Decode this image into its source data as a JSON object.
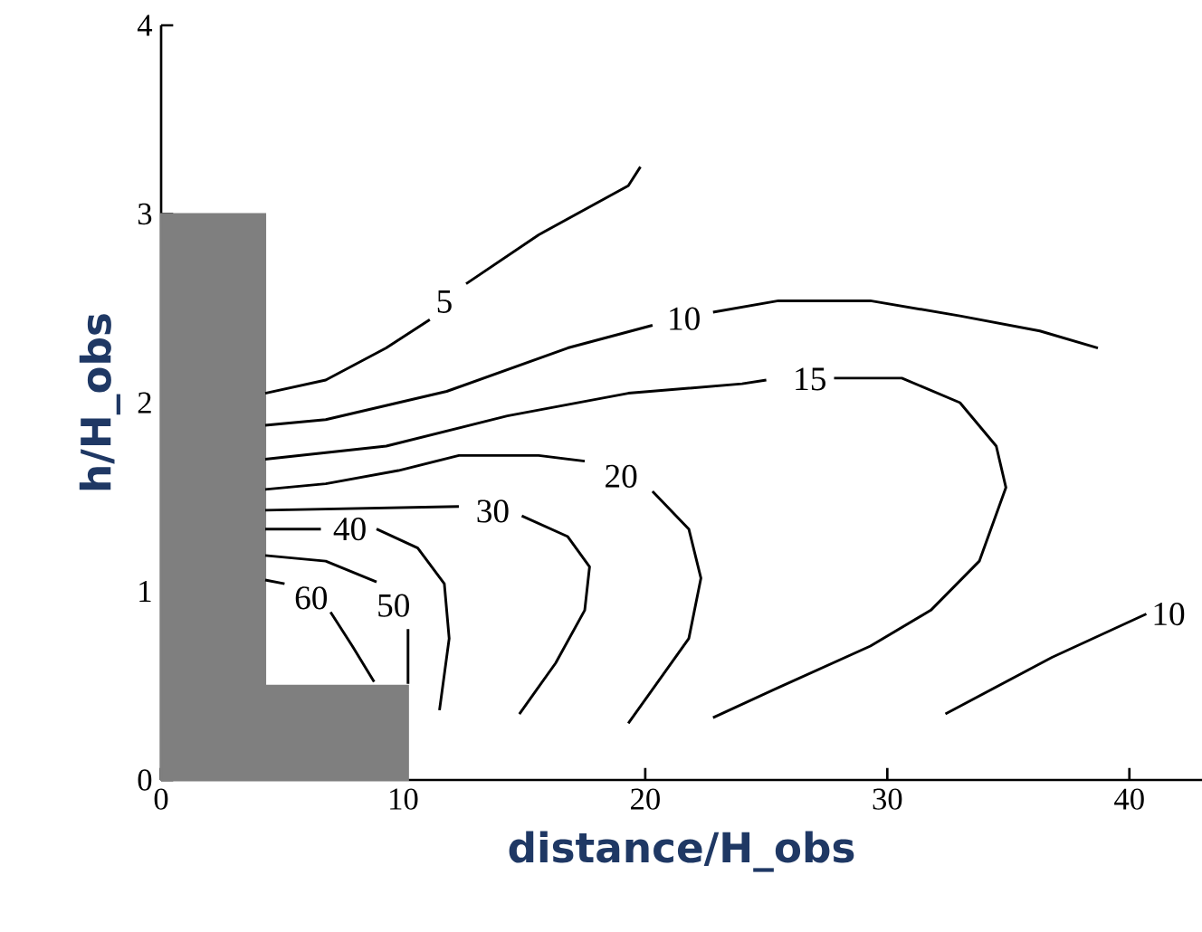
{
  "chart_data": {
    "type": "line",
    "xlabel": "distance/H_obs",
    "ylabel": "h/H_obs",
    "xlim": [
      0,
      43
    ],
    "ylim": [
      0,
      4
    ],
    "xticks": [
      0,
      10,
      20,
      30,
      40
    ],
    "yticks": [
      0,
      1,
      2,
      3,
      4
    ],
    "series": [
      {
        "type": "area",
        "color": "#7f7f7f",
        "x": [
          0,
          4.3,
          4.3,
          10.2
        ],
        "values": [
          3,
          3,
          0.5,
          0.5
        ]
      },
      {
        "name": "5",
        "color": "#000000",
        "x": [
          4.3,
          6.8,
          9.3,
          11.1,
          11.7,
          12.6,
          15.6,
          19.3,
          19.8
        ],
        "values": [
          2.05,
          2.12,
          2.29,
          2.44,
          null,
          2.63,
          2.89,
          3.15,
          3.25
        ]
      },
      {
        "name": "10",
        "color": "#000000",
        "x": [
          4.3,
          6.8,
          11.8,
          16.8,
          20.3,
          21.6,
          22.8,
          25.5,
          29.3,
          33.0,
          36.3,
          38.7
        ],
        "values": [
          1.88,
          1.91,
          2.06,
          2.29,
          2.41,
          null,
          2.48,
          2.54,
          2.54,
          2.46,
          2.38,
          2.29
        ]
      },
      {
        "name": "15",
        "color": "#000000",
        "x": [
          4.3,
          9.3,
          14.3,
          19.3,
          24.0,
          25.0,
          26.8,
          27.8,
          30.6,
          33.0,
          34.5,
          34.9,
          33.8,
          31.8,
          29.3,
          25.5,
          22.8
        ],
        "values": [
          1.7,
          1.77,
          1.93,
          2.05,
          2.1,
          2.12,
          null,
          2.13,
          2.13,
          2.0,
          1.77,
          1.55,
          1.16,
          0.9,
          0.71,
          0.49,
          0.33
        ]
      },
      {
        "name": "20",
        "color": "#000000",
        "x": [
          4.3,
          6.8,
          9.8,
          12.3,
          15.6,
          17.5,
          19.0,
          20.3,
          21.8,
          22.3,
          21.8,
          19.3
        ],
        "values": [
          1.54,
          1.57,
          1.64,
          1.72,
          1.72,
          1.69,
          null,
          1.53,
          1.33,
          1.07,
          0.75,
          0.3
        ]
      },
      {
        "name": "30",
        "color": "#000000",
        "x": [
          4.3,
          12.3,
          13.7,
          14.9,
          16.8,
          17.7,
          17.5,
          16.3,
          14.8
        ],
        "values": [
          1.43,
          1.45,
          null,
          1.4,
          1.29,
          1.13,
          0.9,
          0.62,
          0.35
        ]
      },
      {
        "name": "40",
        "color": "#000000",
        "x": [
          4.3,
          6.6,
          7.8,
          8.9,
          10.6,
          11.7,
          11.9,
          11.5
        ],
        "values": [
          1.33,
          1.33,
          null,
          1.33,
          1.23,
          1.04,
          0.75,
          0.37
        ]
      },
      {
        "name": "50",
        "color": "#000000",
        "x": [
          4.3,
          6.8,
          8.9,
          9.6,
          10.2,
          10.2
        ],
        "values": [
          1.19,
          1.16,
          1.05,
          null,
          0.8,
          0.51
        ]
      },
      {
        "name": "60",
        "color": "#000000",
        "x": [
          4.3,
          5.1,
          6.2,
          7.0,
          7.9,
          8.8
        ],
        "values": [
          1.06,
          1.04,
          null,
          0.89,
          0.71,
          0.52
        ]
      },
      {
        "name": "10",
        "color": "#000000",
        "x": [
          32.4,
          36.8,
          40.7
        ],
        "values": [
          0.35,
          0.65,
          0.88
        ]
      }
    ]
  }
}
